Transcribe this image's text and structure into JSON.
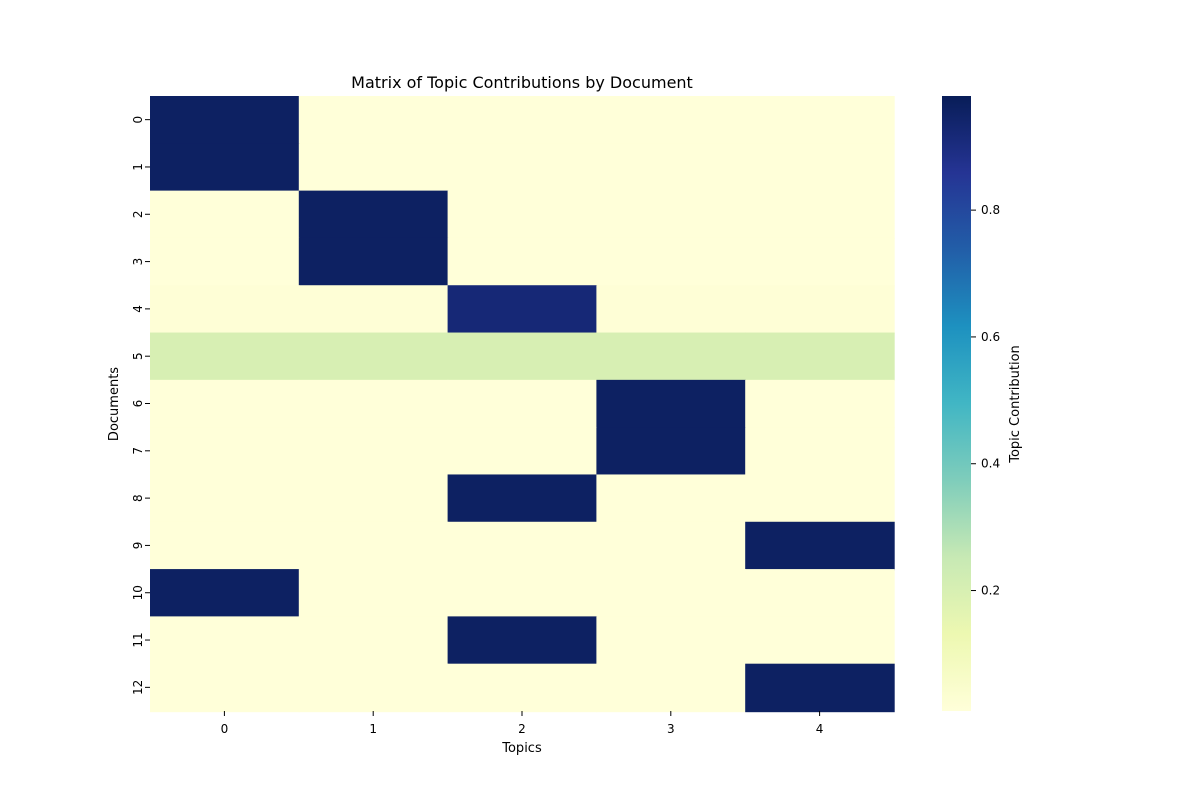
{
  "chart_data": {
    "type": "heatmap",
    "title": "Matrix of Topic Contributions by Document",
    "xlabel": "Topics",
    "ylabel": "Documents",
    "x_categories": [
      "0",
      "1",
      "2",
      "3",
      "4"
    ],
    "y_categories": [
      "0",
      "1",
      "2",
      "3",
      "4",
      "5",
      "6",
      "7",
      "8",
      "9",
      "10",
      "11",
      "12"
    ],
    "values": [
      [
        0.96,
        0.01,
        0.01,
        0.01,
        0.01
      ],
      [
        0.96,
        0.01,
        0.01,
        0.01,
        0.01
      ],
      [
        0.01,
        0.96,
        0.01,
        0.01,
        0.01
      ],
      [
        0.01,
        0.96,
        0.01,
        0.01,
        0.01
      ],
      [
        0.02,
        0.02,
        0.92,
        0.02,
        0.02
      ],
      [
        0.2,
        0.2,
        0.2,
        0.2,
        0.2
      ],
      [
        0.01,
        0.01,
        0.01,
        0.96,
        0.01
      ],
      [
        0.01,
        0.01,
        0.01,
        0.96,
        0.01
      ],
      [
        0.01,
        0.01,
        0.96,
        0.01,
        0.01
      ],
      [
        0.01,
        0.01,
        0.01,
        0.01,
        0.96
      ],
      [
        0.96,
        0.01,
        0.01,
        0.01,
        0.01
      ],
      [
        0.01,
        0.01,
        0.96,
        0.01,
        0.01
      ],
      [
        0.01,
        0.01,
        0.01,
        0.01,
        0.96
      ]
    ],
    "colorbar": {
      "label": "Topic Contribution",
      "range": [
        0.01,
        0.98
      ],
      "ticks": [
        0.2,
        0.4,
        0.6,
        0.8
      ],
      "tick_labels": [
        "0.2",
        "0.4",
        "0.6",
        "0.8"
      ],
      "colormap": "YlGnBu",
      "colors": [
        "#ffffd9",
        "#edf8b1",
        "#c7e9b4",
        "#7fcdbb",
        "#41b6c4",
        "#1d91c0",
        "#225ea8",
        "#253494",
        "#081d58"
      ]
    },
    "grid": false
  }
}
